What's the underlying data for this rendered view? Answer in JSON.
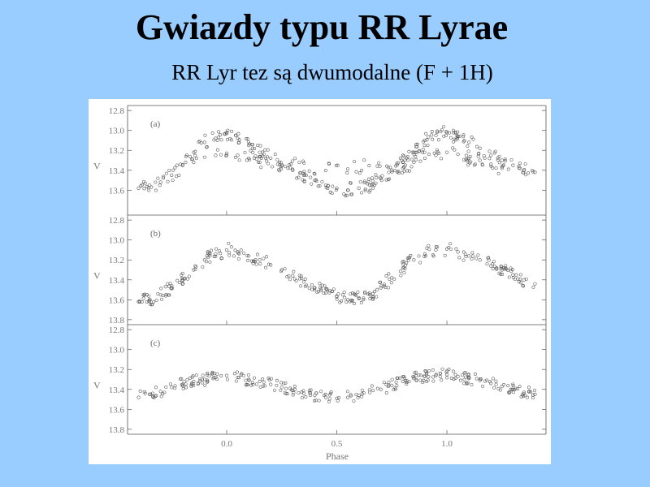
{
  "slide": {
    "title": "Gwiazdy typu RR Lyrae",
    "subtitle": "RR Lyr tez są dwumodalne (F + 1H)"
  },
  "colors": {
    "background": "#99ccff",
    "figure_background": "#ffffff",
    "ink": "#555555"
  },
  "chart_data": [
    {
      "type": "scatter",
      "panel_label": "(a)",
      "xlabel": "Phase",
      "ylabel": "V",
      "xlim": [
        -0.45,
        1.45
      ],
      "ylim": [
        13.85,
        12.75
      ],
      "y_inverted": true,
      "yticks": [
        "12.8",
        "13.0",
        "13.2",
        "13.4",
        "13.6"
      ],
      "xticks": [
        "0.0",
        "0.5",
        "1.0"
      ],
      "grid": false,
      "series": [
        {
          "values_note_free": true,
          "x": [
            -0.4,
            -0.35,
            -0.3,
            -0.25,
            -0.2,
            -0.15,
            -0.1,
            -0.05,
            0.0,
            0.05,
            0.1,
            0.15,
            0.2,
            0.25,
            0.3,
            0.35,
            0.4,
            0.45,
            0.5,
            0.55,
            0.6,
            0.65,
            0.7,
            0.75,
            0.8,
            0.85,
            0.9,
            0.95,
            1.0,
            1.05,
            1.1,
            1.15,
            1.2,
            1.25,
            1.3,
            1.35,
            1.4
          ],
          "y": [
            13.58,
            13.55,
            13.52,
            13.45,
            13.35,
            13.22,
            13.12,
            13.08,
            13.03,
            13.08,
            13.15,
            13.22,
            13.28,
            13.35,
            13.4,
            13.45,
            13.5,
            13.55,
            13.58,
            13.6,
            13.58,
            13.55,
            13.48,
            13.4,
            13.32,
            13.22,
            13.1,
            13.05,
            13.02,
            13.06,
            13.12,
            13.18,
            13.25,
            13.3,
            13.35,
            13.4,
            13.42
          ]
        },
        {
          "x": [
            -0.15,
            -0.1,
            -0.05,
            0.0,
            0.05,
            0.1,
            0.15,
            0.8,
            0.85,
            0.9,
            0.95,
            1.0,
            1.05,
            1.1,
            1.15,
            1.2,
            1.25
          ],
          "y": [
            13.32,
            13.27,
            13.25,
            13.23,
            13.25,
            13.28,
            13.32,
            13.38,
            13.32,
            13.28,
            13.25,
            13.22,
            13.24,
            13.28,
            13.3,
            13.34,
            13.38
          ]
        }
      ]
    },
    {
      "type": "scatter",
      "panel_label": "(b)",
      "xlabel": "Phase",
      "ylabel": "V",
      "xlim": [
        -0.45,
        1.45
      ],
      "ylim": [
        13.85,
        12.75
      ],
      "y_inverted": true,
      "yticks": [
        "12.8",
        "13.0",
        "13.2",
        "13.4",
        "13.6",
        "13.8"
      ],
      "xticks": [
        "0.0",
        "0.5",
        "1.0"
      ],
      "grid": false,
      "series": [
        {
          "x": [
            -0.4,
            -0.35,
            -0.3,
            -0.25,
            -0.2,
            -0.15,
            -0.1,
            -0.05,
            0.0,
            0.05,
            0.1,
            0.15,
            0.2,
            0.25,
            0.3,
            0.35,
            0.4,
            0.45,
            0.5,
            0.55,
            0.6,
            0.65,
            0.7,
            0.75,
            0.8,
            0.85,
            0.9,
            0.95,
            1.0,
            1.05,
            1.1,
            1.15,
            1.2,
            1.25,
            1.3,
            1.35,
            1.4
          ],
          "y": [
            13.62,
            13.6,
            13.55,
            13.48,
            13.4,
            13.3,
            13.2,
            13.14,
            13.1,
            13.12,
            13.16,
            13.2,
            13.25,
            13.3,
            13.36,
            13.42,
            13.48,
            13.53,
            13.57,
            13.6,
            13.58,
            13.55,
            13.48,
            13.38,
            13.28,
            13.2,
            13.14,
            13.1,
            13.09,
            13.12,
            13.16,
            13.2,
            13.26,
            13.3,
            13.35,
            13.4,
            13.44
          ]
        }
      ]
    },
    {
      "type": "scatter",
      "panel_label": "(c)",
      "xlabel": "Phase",
      "ylabel": "V",
      "xlim": [
        -0.45,
        1.45
      ],
      "ylim": [
        13.85,
        12.75
      ],
      "y_inverted": true,
      "yticks": [
        "12.8",
        "13.0",
        "13.2",
        "13.4",
        "13.6",
        "13.8"
      ],
      "xticks": [
        "0.0",
        "0.5",
        "1.0"
      ],
      "grid": false,
      "series": [
        {
          "x": [
            -0.4,
            -0.35,
            -0.3,
            -0.25,
            -0.2,
            -0.15,
            -0.1,
            -0.05,
            0.0,
            0.05,
            0.1,
            0.15,
            0.2,
            0.25,
            0.3,
            0.35,
            0.4,
            0.45,
            0.5,
            0.55,
            0.6,
            0.65,
            0.7,
            0.75,
            0.8,
            0.85,
            0.9,
            0.95,
            1.0,
            1.05,
            1.1,
            1.15,
            1.2,
            1.25,
            1.3,
            1.35,
            1.4
          ],
          "y": [
            13.48,
            13.45,
            13.42,
            13.38,
            13.35,
            13.32,
            13.3,
            13.28,
            13.26,
            13.28,
            13.3,
            13.32,
            13.35,
            13.38,
            13.41,
            13.44,
            13.46,
            13.48,
            13.49,
            13.48,
            13.46,
            13.43,
            13.4,
            13.36,
            13.32,
            13.29,
            13.27,
            13.26,
            13.25,
            13.27,
            13.29,
            13.31,
            13.34,
            13.37,
            13.4,
            13.43,
            13.45
          ]
        }
      ]
    }
  ]
}
